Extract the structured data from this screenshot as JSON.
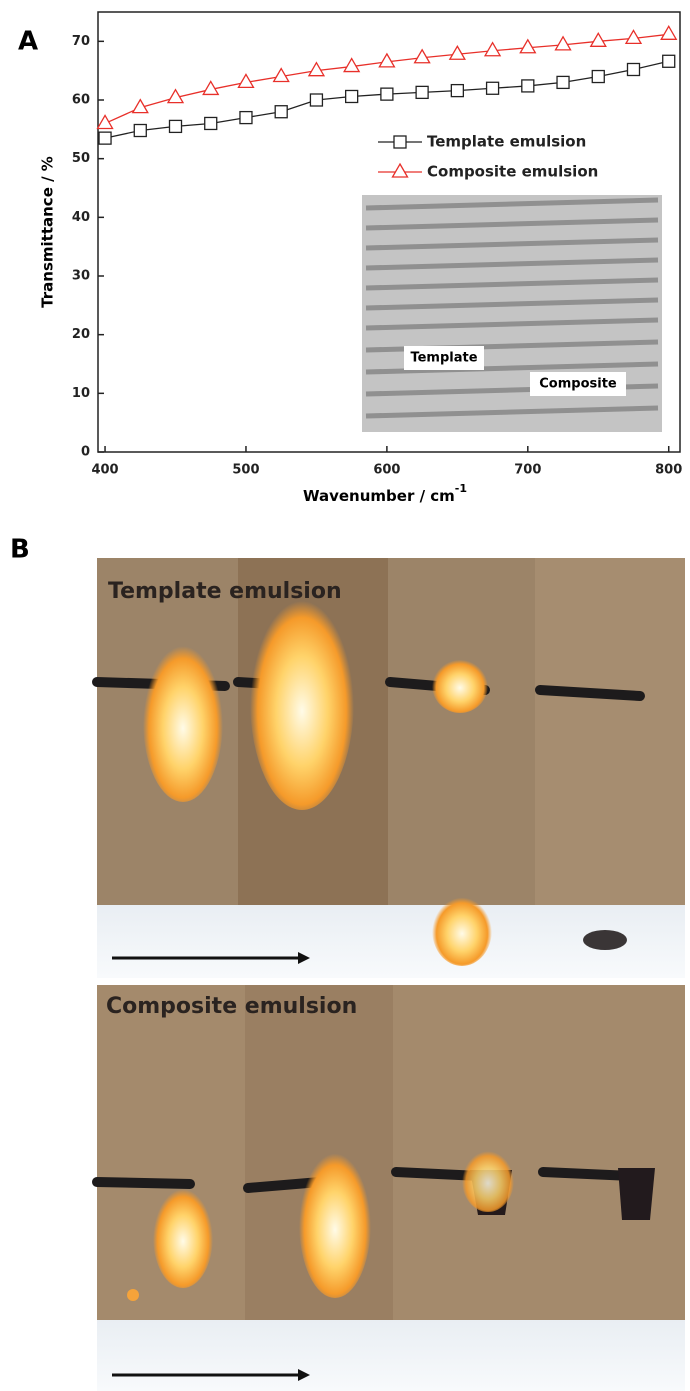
{
  "chart_data": {
    "type": "line",
    "panel_label": "A",
    "xlabel": {
      "text": "Wavenumber / cm",
      "sup": "-1"
    },
    "ylabel": "Transmittance / %",
    "x": [
      400,
      425,
      450,
      475,
      500,
      525,
      550,
      575,
      600,
      625,
      650,
      675,
      700,
      725,
      750,
      775,
      800
    ],
    "series": [
      {
        "name": "Template emulsion",
        "color": "#222222",
        "marker": "square",
        "values": [
          53.5,
          54.8,
          55.5,
          56,
          57,
          58,
          60,
          60.6,
          61,
          61.3,
          61.6,
          62,
          62.4,
          63,
          64,
          65.2,
          66.6
        ]
      },
      {
        "name": "Composite emulsion",
        "color": "#e8302a",
        "marker": "triangle",
        "values": [
          56,
          58.7,
          60.4,
          61.8,
          63,
          64,
          65,
          65.7,
          66.5,
          67.2,
          67.8,
          68.4,
          68.9,
          69.4,
          70,
          70.5,
          71.2
        ]
      }
    ],
    "xlim": [
      395,
      808
    ],
    "ylim": [
      0,
      75
    ],
    "xticks": [
      400,
      500,
      600,
      700,
      800
    ],
    "yticks": [
      0,
      10,
      20,
      30,
      40,
      50,
      60,
      70
    ],
    "legend": "upper-right",
    "inset_labels": [
      "Template",
      "Composite"
    ]
  },
  "panel_b": {
    "label": "B",
    "rows": [
      "Template emulsion",
      "Composite emulsion"
    ]
  }
}
